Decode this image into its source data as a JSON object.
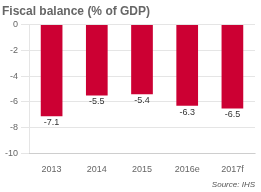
{
  "chart_data": {
    "type": "bar",
    "title": "Fiscal balance (% of GDP)",
    "categories": [
      "2013",
      "2014",
      "2015",
      "2016e",
      "2017f"
    ],
    "values": [
      -7.1,
      -5.5,
      -5.4,
      -6.3,
      -6.5
    ],
    "color": "#cc0033",
    "ylim": [
      -10,
      0
    ],
    "yticks": [
      0,
      -2,
      -4,
      -6,
      -8,
      -10
    ],
    "grid": true,
    "data_labels": true,
    "source": "Source: IHS"
  }
}
